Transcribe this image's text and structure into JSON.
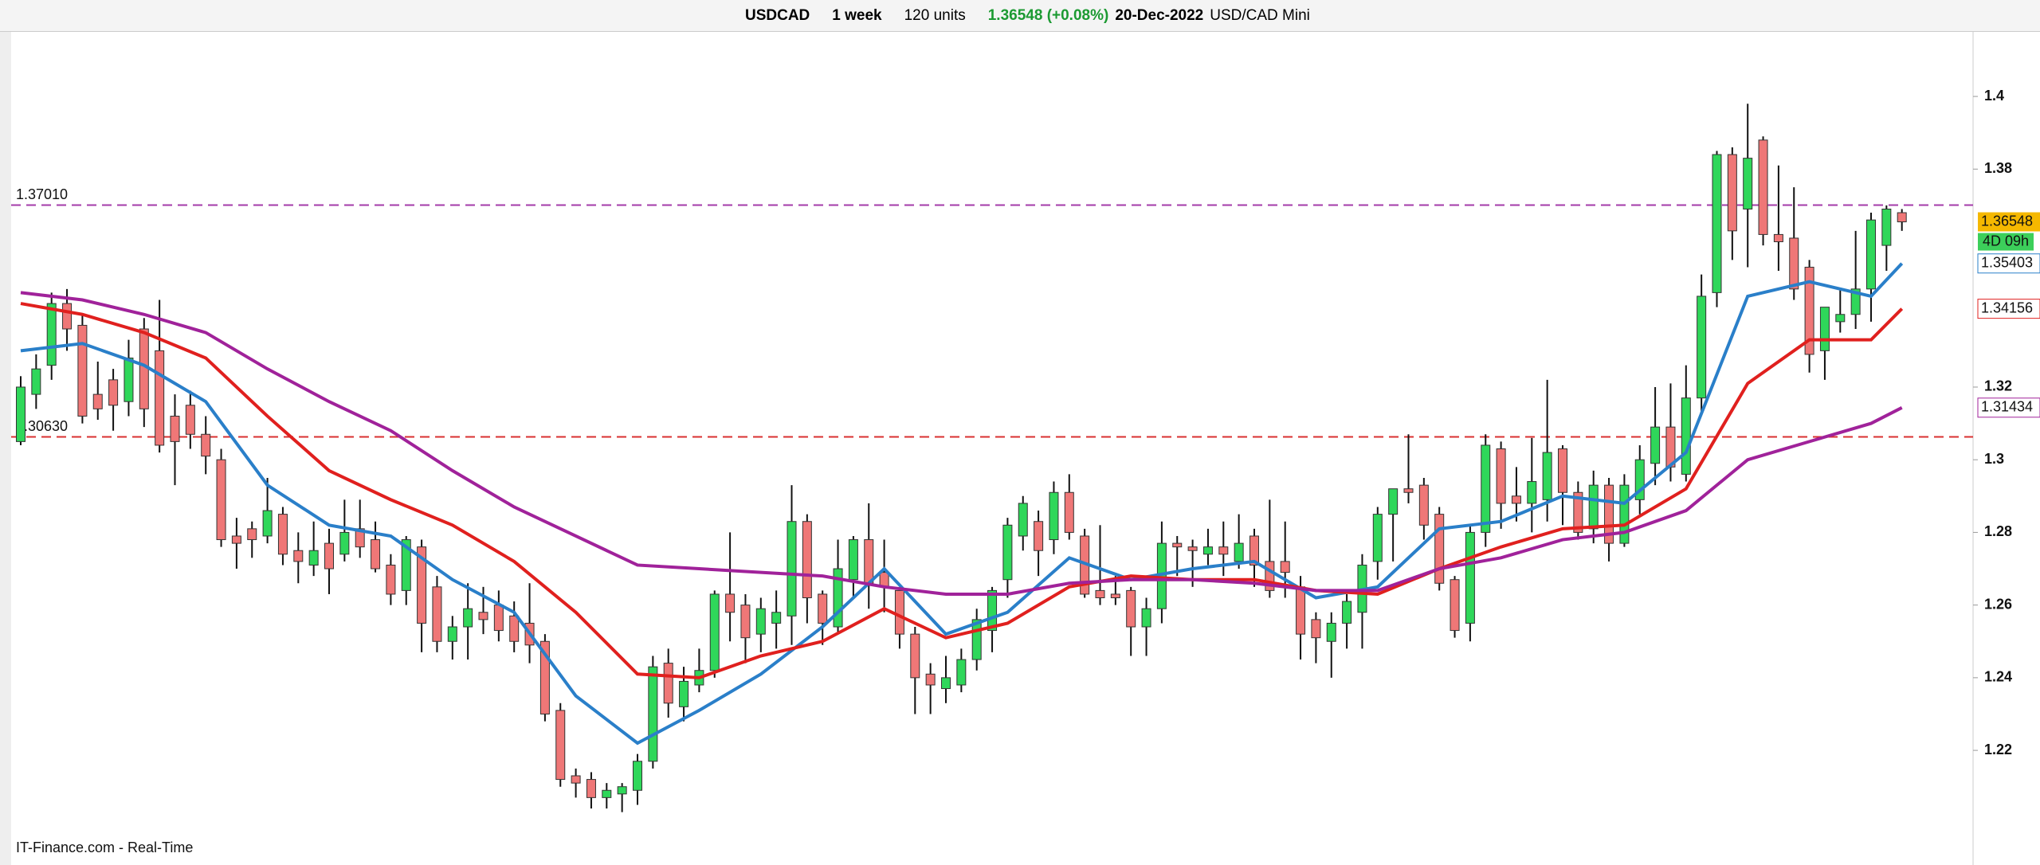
{
  "toolbar": {
    "symbol": "USDCAD",
    "period": "1 week",
    "units": "120 units",
    "quote": "1.36548 (+0.08%)",
    "date": "20-Dec-2022",
    "instrument": "USD/CAD Mini"
  },
  "footer": "IT-Finance.com - Real-Time",
  "chart_data": {
    "type": "candlestick",
    "up_color": "#2fd75a",
    "down_color": "#ef7777",
    "open": [
      1.305,
      1.318,
      1.326,
      1.343,
      1.337,
      1.318,
      1.322,
      1.316,
      1.336,
      1.33,
      1.312,
      1.315,
      1.307,
      1.3,
      1.279,
      1.281,
      1.279,
      1.285,
      1.275,
      1.271,
      1.277,
      1.274,
      1.281,
      1.278,
      1.271,
      1.264,
      1.276,
      1.265,
      1.25,
      1.254,
      1.258,
      1.26,
      1.257,
      1.255,
      1.25,
      1.231,
      1.213,
      1.212,
      1.207,
      1.208,
      1.209,
      1.217,
      1.244,
      1.232,
      1.238,
      1.242,
      1.263,
      1.26,
      1.252,
      1.255,
      1.257,
      1.283,
      1.263,
      1.254,
      1.267,
      1.278,
      1.269,
      1.264,
      1.252,
      1.241,
      1.237,
      1.238,
      1.245,
      1.253,
      1.267,
      1.279,
      1.283,
      1.278,
      1.291,
      1.279,
      1.264,
      1.263,
      1.264,
      1.254,
      1.259,
      1.277,
      1.276,
      1.274,
      1.276,
      1.272,
      1.279,
      1.272,
      1.272,
      1.265,
      1.256,
      1.25,
      1.255,
      1.258,
      1.272,
      1.285,
      1.292,
      1.293,
      1.285,
      1.267,
      1.255,
      1.28,
      1.303,
      1.29,
      1.288,
      1.289,
      1.303,
      1.291,
      1.281,
      1.293,
      1.277,
      1.289,
      1.299,
      1.309,
      1.296,
      1.317,
      1.346,
      1.384,
      1.369,
      1.388,
      1.362,
      1.361,
      1.353,
      1.33,
      1.338,
      1.34,
      1.347,
      1.359,
      1.368
    ],
    "high": [
      1.323,
      1.329,
      1.346,
      1.347,
      1.34,
      1.327,
      1.325,
      1.333,
      1.339,
      1.344,
      1.318,
      1.319,
      1.312,
      1.303,
      1.284,
      1.283,
      1.295,
      1.287,
      1.28,
      1.283,
      1.281,
      1.289,
      1.289,
      1.283,
      1.274,
      1.279,
      1.278,
      1.268,
      1.257,
      1.266,
      1.265,
      1.264,
      1.261,
      1.266,
      1.252,
      1.233,
      1.215,
      1.214,
      1.211,
      1.211,
      1.219,
      1.246,
      1.248,
      1.243,
      1.248,
      1.264,
      1.28,
      1.263,
      1.262,
      1.264,
      1.293,
      1.285,
      1.264,
      1.278,
      1.279,
      1.288,
      1.278,
      1.264,
      1.254,
      1.244,
      1.246,
      1.248,
      1.259,
      1.265,
      1.284,
      1.29,
      1.286,
      1.294,
      1.296,
      1.281,
      1.282,
      1.268,
      1.265,
      1.262,
      1.283,
      1.279,
      1.278,
      1.281,
      1.283,
      1.285,
      1.281,
      1.289,
      1.283,
      1.268,
      1.258,
      1.258,
      1.263,
      1.274,
      1.287,
      1.292,
      1.307,
      1.295,
      1.287,
      1.268,
      1.282,
      1.307,
      1.305,
      1.298,
      1.306,
      1.322,
      1.304,
      1.294,
      1.297,
      1.295,
      1.296,
      1.304,
      1.32,
      1.321,
      1.326,
      1.351,
      1.385,
      1.386,
      1.398,
      1.389,
      1.381,
      1.375,
      1.355,
      1.342,
      1.347,
      1.363,
      1.368,
      1.37,
      1.369
    ],
    "low": [
      1.304,
      1.314,
      1.322,
      1.33,
      1.31,
      1.311,
      1.308,
      1.312,
      1.309,
      1.302,
      1.293,
      1.303,
      1.296,
      1.276,
      1.27,
      1.273,
      1.277,
      1.271,
      1.266,
      1.268,
      1.263,
      1.272,
      1.273,
      1.269,
      1.26,
      1.26,
      1.247,
      1.247,
      1.245,
      1.245,
      1.252,
      1.25,
      1.247,
      1.244,
      1.228,
      1.21,
      1.207,
      1.204,
      1.204,
      1.203,
      1.205,
      1.215,
      1.229,
      1.228,
      1.236,
      1.24,
      1.25,
      1.244,
      1.247,
      1.248,
      1.249,
      1.255,
      1.249,
      1.252,
      1.262,
      1.259,
      1.258,
      1.248,
      1.23,
      1.23,
      1.233,
      1.236,
      1.242,
      1.247,
      1.262,
      1.275,
      1.268,
      1.274,
      1.278,
      1.262,
      1.26,
      1.26,
      1.246,
      1.246,
      1.255,
      1.268,
      1.265,
      1.271,
      1.268,
      1.27,
      1.265,
      1.262,
      1.262,
      1.245,
      1.244,
      1.24,
      1.248,
      1.248,
      1.267,
      1.272,
      1.288,
      1.278,
      1.264,
      1.251,
      1.25,
      1.276,
      1.281,
      1.283,
      1.28,
      1.283,
      1.282,
      1.278,
      1.277,
      1.272,
      1.276,
      1.285,
      1.293,
      1.294,
      1.294,
      1.313,
      1.342,
      1.355,
      1.353,
      1.359,
      1.352,
      1.344,
      1.324,
      1.322,
      1.335,
      1.336,
      1.338,
      1.352,
      1.363
    ],
    "close": [
      1.32,
      1.325,
      1.343,
      1.336,
      1.312,
      1.314,
      1.315,
      1.328,
      1.314,
      1.304,
      1.305,
      1.307,
      1.301,
      1.278,
      1.277,
      1.278,
      1.286,
      1.274,
      1.272,
      1.275,
      1.27,
      1.28,
      1.276,
      1.27,
      1.263,
      1.278,
      1.255,
      1.25,
      1.254,
      1.259,
      1.256,
      1.253,
      1.25,
      1.249,
      1.23,
      1.212,
      1.211,
      1.207,
      1.209,
      1.21,
      1.217,
      1.243,
      1.233,
      1.239,
      1.242,
      1.263,
      1.258,
      1.251,
      1.259,
      1.258,
      1.283,
      1.262,
      1.255,
      1.27,
      1.278,
      1.266,
      1.265,
      1.252,
      1.24,
      1.238,
      1.24,
      1.245,
      1.256,
      1.264,
      1.282,
      1.288,
      1.275,
      1.291,
      1.28,
      1.263,
      1.262,
      1.262,
      1.254,
      1.259,
      1.277,
      1.276,
      1.275,
      1.276,
      1.274,
      1.277,
      1.271,
      1.264,
      1.269,
      1.252,
      1.251,
      1.255,
      1.261,
      1.271,
      1.285,
      1.292,
      1.291,
      1.282,
      1.266,
      1.253,
      1.28,
      1.304,
      1.288,
      1.288,
      1.294,
      1.302,
      1.291,
      1.28,
      1.293,
      1.277,
      1.293,
      1.3,
      1.309,
      1.298,
      1.317,
      1.345,
      1.384,
      1.363,
      1.383,
      1.362,
      1.36,
      1.347,
      1.329,
      1.342,
      1.34,
      1.347,
      1.366,
      1.369,
      1.36548
    ],
    "price_label": "1.36548",
    "countdown": "4D 09h",
    "lines": [
      {
        "color": "#2a7fc9",
        "label": "1.35403",
        "x": [
          0,
          4,
          8,
          12,
          16,
          20,
          24,
          28,
          32,
          36,
          40,
          44,
          48,
          52,
          56,
          60,
          64,
          68,
          72,
          76,
          80,
          84,
          88,
          92,
          96,
          100,
          104,
          108,
          112,
          116,
          120,
          122
        ],
        "values": [
          1.33,
          1.332,
          1.326,
          1.316,
          1.293,
          1.282,
          1.279,
          1.267,
          1.258,
          1.235,
          1.222,
          1.231,
          1.241,
          1.254,
          1.27,
          1.252,
          1.258,
          1.273,
          1.267,
          1.27,
          1.272,
          1.262,
          1.265,
          1.281,
          1.283,
          1.29,
          1.288,
          1.302,
          1.345,
          1.349,
          1.345,
          1.35403
        ]
      },
      {
        "color": "#e0201e",
        "label": "1.34156",
        "x": [
          0,
          4,
          8,
          12,
          16,
          20,
          24,
          28,
          32,
          36,
          40,
          44,
          48,
          52,
          56,
          60,
          64,
          68,
          72,
          76,
          80,
          84,
          88,
          92,
          96,
          100,
          104,
          108,
          112,
          116,
          120,
          122
        ],
        "values": [
          1.343,
          1.34,
          1.335,
          1.328,
          1.312,
          1.297,
          1.289,
          1.282,
          1.272,
          1.258,
          1.241,
          1.24,
          1.246,
          1.25,
          1.259,
          1.251,
          1.255,
          1.265,
          1.268,
          1.267,
          1.267,
          1.264,
          1.263,
          1.27,
          1.276,
          1.281,
          1.282,
          1.292,
          1.321,
          1.333,
          1.333,
          1.34156
        ]
      },
      {
        "color": "#a0229a",
        "label": "1.31434",
        "x": [
          0,
          4,
          8,
          12,
          16,
          20,
          24,
          28,
          32,
          36,
          40,
          44,
          48,
          52,
          56,
          60,
          64,
          68,
          72,
          76,
          80,
          84,
          88,
          92,
          96,
          100,
          104,
          108,
          112,
          116,
          120,
          122
        ],
        "values": [
          1.346,
          1.344,
          1.34,
          1.335,
          1.325,
          1.316,
          1.308,
          1.297,
          1.287,
          1.279,
          1.271,
          1.27,
          1.269,
          1.268,
          1.265,
          1.263,
          1.263,
          1.266,
          1.267,
          1.267,
          1.266,
          1.264,
          1.264,
          1.27,
          1.273,
          1.278,
          1.28,
          1.286,
          1.3,
          1.305,
          1.31,
          1.31434
        ]
      }
    ],
    "levels": [
      {
        "value": 1.3701,
        "label": "1.37010",
        "color": "#a33aa8"
      },
      {
        "value": 1.3063,
        "label": "1.30630",
        "color": "#d83030"
      }
    ],
    "ylim": [
      1.1902,
      1.4169
    ],
    "yticks": [
      1.22,
      1.24,
      1.26,
      1.28,
      1.3,
      1.32,
      1.38,
      1.4
    ]
  }
}
